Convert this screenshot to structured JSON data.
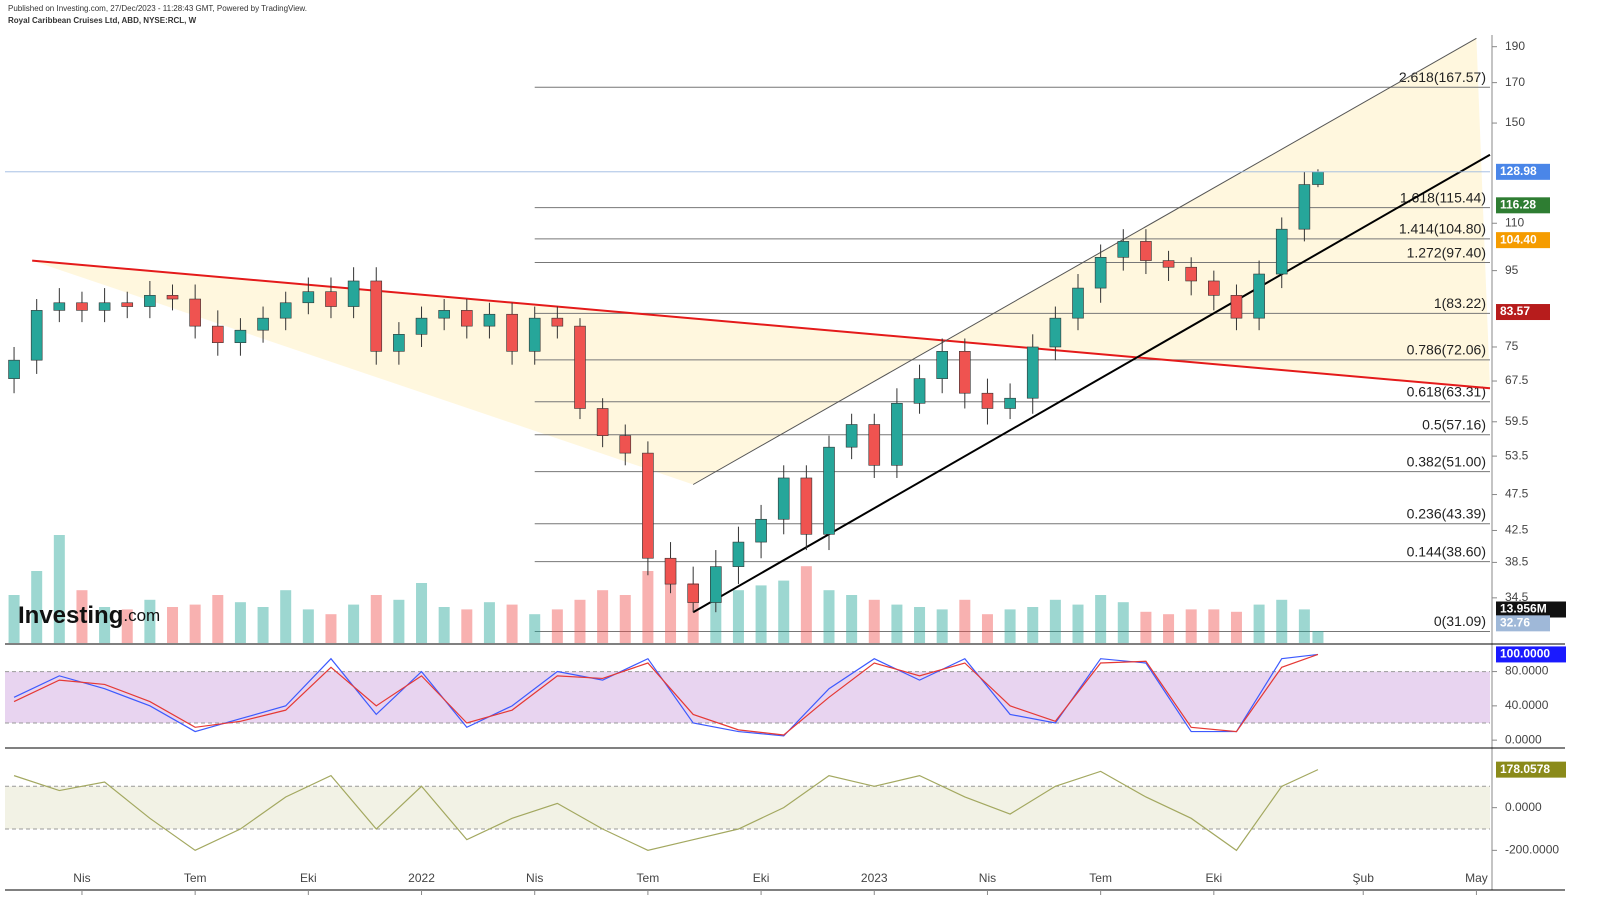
{
  "header": {
    "published": "Published on Investing.com, 27/Dec/2023 - 11:28:43 GMT, Powered by TradingView.",
    "symbol": "Royal Caribbean Cruises Ltd, ABD, NYSE:RCL, W",
    "logo": "Investing",
    "logo_suffix": ".com"
  },
  "chart_data": [
    {
      "type": "candlestick",
      "log_scale": true,
      "ylim": [
        30,
        197
      ],
      "xlim": [
        2021.08,
        2024.36
      ],
      "up_color": "#26a69a",
      "down_color": "#ef5350",
      "xticks": [
        {
          "value": 2021.25,
          "label": "Nis"
        },
        {
          "value": 2021.5,
          "label": "Tem"
        },
        {
          "value": 2021.75,
          "label": "Eki"
        },
        2022,
        {
          "value": 2022.25,
          "label": "Nis"
        },
        {
          "value": 2022.5,
          "label": "Tem"
        },
        {
          "value": 2022.75,
          "label": "Eki"
        },
        2023,
        {
          "value": 2023.25,
          "label": "Nis"
        },
        {
          "value": 2023.5,
          "label": "Tem"
        },
        {
          "value": 2023.75,
          "label": "Eki"
        },
        {
          "value": 2024.08,
          "label": "Şub"
        },
        {
          "value": 2024.33,
          "label": "May"
        }
      ],
      "yticks": [
        190,
        170,
        150,
        110,
        95,
        75,
        67.5,
        59.5,
        53.5,
        47.5,
        42.5,
        38.5,
        34.5
      ],
      "x": [
        2021.1,
        2021.15,
        2021.2,
        2021.25,
        2021.3,
        2021.35,
        2021.4,
        2021.45,
        2021.5,
        2021.55,
        2021.6,
        2021.65,
        2021.7,
        2021.75,
        2021.8,
        2021.85,
        2021.9,
        2021.95,
        2022.0,
        2022.05,
        2022.1,
        2022.15,
        2022.2,
        2022.25,
        2022.3,
        2022.35,
        2022.4,
        2022.45,
        2022.5,
        2022.55,
        2022.6,
        2022.65,
        2022.7,
        2022.75,
        2022.8,
        2022.85,
        2022.9,
        2022.95,
        2023.0,
        2023.05,
        2023.1,
        2023.15,
        2023.2,
        2023.25,
        2023.3,
        2023.35,
        2023.4,
        2023.45,
        2023.5,
        2023.55,
        2023.6,
        2023.65,
        2023.7,
        2023.75,
        2023.8,
        2023.85,
        2023.9,
        2023.95,
        2023.98
      ],
      "open": [
        68,
        72,
        84,
        86,
        84,
        86,
        85,
        88,
        87,
        80,
        76,
        79,
        82,
        86,
        89,
        85,
        92,
        74,
        78,
        82,
        84,
        80,
        83,
        74,
        82,
        80,
        62,
        57,
        54,
        39,
        36,
        34,
        38,
        41,
        44,
        50,
        42,
        55,
        59,
        52,
        63,
        68,
        74,
        65,
        62,
        64,
        75,
        82,
        90,
        99,
        104,
        98,
        96,
        92,
        88,
        82,
        94,
        108,
        124
      ],
      "high": [
        75,
        87,
        90,
        89,
        90,
        89,
        92,
        91,
        91,
        84,
        82,
        85,
        89,
        93,
        93,
        96,
        96,
        81,
        85,
        87,
        87,
        86,
        86,
        85,
        85,
        82,
        64,
        59,
        56,
        41,
        38,
        40,
        43,
        46,
        52,
        52,
        57,
        61,
        61,
        66,
        71,
        77,
        77,
        68,
        67,
        78,
        85,
        94,
        103,
        108,
        108,
        101,
        99,
        95,
        91,
        98,
        112,
        129,
        130
      ],
      "low": [
        65,
        69,
        81,
        81,
        81,
        82,
        82,
        84,
        77,
        73,
        73,
        76,
        79,
        83,
        82,
        82,
        71,
        71,
        75,
        79,
        77,
        77,
        71,
        71,
        77,
        60,
        55,
        52,
        37,
        35,
        33,
        33,
        36,
        39,
        42,
        40,
        40,
        53,
        50,
        50,
        61,
        65,
        62,
        59,
        60,
        61,
        72,
        79,
        86,
        95,
        94,
        92,
        88,
        84,
        79,
        79,
        90,
        104,
        123
      ],
      "close": [
        72,
        84,
        86,
        84,
        86,
        85,
        88,
        87,
        80,
        76,
        79,
        82,
        86,
        89,
        85,
        92,
        74,
        78,
        82,
        84,
        80,
        83,
        74,
        82,
        80,
        62,
        57,
        54,
        39,
        36,
        34,
        38,
        41,
        44,
        50,
        42,
        55,
        59,
        52,
        63,
        68,
        74,
        65,
        62,
        64,
        75,
        82,
        90,
        99,
        104,
        98,
        96,
        92,
        88,
        82,
        94,
        108,
        124,
        128.98
      ],
      "volume": [
        20,
        30,
        45,
        22,
        15,
        14,
        18,
        15,
        16,
        20,
        17,
        15,
        22,
        14,
        12,
        16,
        20,
        18,
        25,
        15,
        14,
        17,
        16,
        12,
        14,
        18,
        22,
        20,
        30,
        28,
        25,
        27,
        22,
        24,
        26,
        32,
        22,
        20,
        18,
        16,
        15,
        14,
        18,
        12,
        14,
        15,
        18,
        16,
        20,
        17,
        13,
        12,
        14,
        14,
        13,
        16,
        18,
        14,
        5
      ],
      "fib_levels": [
        {
          "value": 167.57,
          "label": "2.618(167.57)"
        },
        {
          "value": 115.44,
          "label": "1.618(115.44)"
        },
        {
          "value": 104.8,
          "label": "1.414(104.80)"
        },
        {
          "value": 97.4,
          "label": "1.272(97.40)"
        },
        {
          "value": 83.22,
          "label": "1(83.22)"
        },
        {
          "value": 72.06,
          "label": "0.786(72.06)"
        },
        {
          "value": 63.31,
          "label": "0.618(63.31)"
        },
        {
          "value": 57.16,
          "label": "0.5(57.16)"
        },
        {
          "value": 51,
          "label": "0.382(51.00)"
        },
        {
          "value": 43.39,
          "label": "0.236(43.39)"
        },
        {
          "value": 38.6,
          "label": "0.144(38.60)"
        },
        {
          "value": 31.09,
          "label": "0(31.09)"
        }
      ],
      "trendlines": [
        {
          "color": "#e41a1a",
          "points": [
            [
              2021.14,
              98
            ],
            [
              2024.36,
              66
            ]
          ]
        },
        {
          "color": "#000000",
          "points": [
            [
              2022.6,
              33
            ],
            [
              2024.36,
              136
            ]
          ]
        },
        {
          "color": "#555555",
          "points": [
            [
              2022.6,
              49
            ],
            [
              2024.33,
              195
            ]
          ]
        }
      ],
      "price_badges": [
        {
          "value": 128.98,
          "label": "128.98",
          "color": "#4a86e8"
        },
        {
          "value": 116.28,
          "label": "116.28",
          "color": "#2e7d32"
        },
        {
          "value": 104.4,
          "label": "104.40",
          "color": "#f59c00"
        },
        {
          "value": 83.57,
          "label": "83.57",
          "color": "#b71c1c"
        }
      ],
      "volume_badges": [
        {
          "value": 13.956,
          "label": "13.956M",
          "color": "#111111"
        },
        {
          "value": 32.76,
          "label": "32.76",
          "color": "#9fb8d8"
        }
      ]
    },
    {
      "type": "line",
      "ylim": [
        -8,
        111
      ],
      "band": [
        20,
        80
      ],
      "yticks": [
        {
          "value": 80,
          "label": "80.0000"
        },
        {
          "value": 40,
          "label": "40.0000"
        },
        {
          "value": 0,
          "label": "0.0000"
        }
      ],
      "x": [
        2021.1,
        2021.2,
        2021.3,
        2021.4,
        2021.5,
        2021.6,
        2021.7,
        2021.8,
        2021.9,
        2022.0,
        2022.1,
        2022.2,
        2022.3,
        2022.4,
        2022.5,
        2022.6,
        2022.7,
        2022.8,
        2022.9,
        2023.0,
        2023.1,
        2023.2,
        2023.3,
        2023.4,
        2023.5,
        2023.6,
        2023.7,
        2023.8,
        2023.9,
        2023.98
      ],
      "series": [
        {
          "color": "#3d5afe",
          "values": [
            50,
            75,
            60,
            40,
            10,
            25,
            40,
            95,
            30,
            80,
            15,
            40,
            80,
            70,
            95,
            20,
            10,
            5,
            60,
            95,
            70,
            95,
            30,
            20,
            95,
            90,
            10,
            10,
            95,
            100
          ]
        },
        {
          "color": "#e53935",
          "values": [
            45,
            70,
            65,
            45,
            15,
            22,
            35,
            85,
            40,
            75,
            20,
            35,
            75,
            72,
            90,
            30,
            12,
            6,
            50,
            90,
            75,
            90,
            40,
            22,
            90,
            92,
            15,
            10,
            85,
            100
          ]
        }
      ],
      "badge": {
        "value": 100,
        "label": "100.0000",
        "color": "#1a1aff"
      }
    },
    {
      "type": "line",
      "ylim": [
        -381,
        270
      ],
      "band": [
        -100,
        100
      ],
      "yticks": [
        {
          "value": 0,
          "label": "0.0000"
        },
        {
          "value": -200,
          "label": "-200.0000"
        }
      ],
      "x": [
        2021.1,
        2021.2,
        2021.3,
        2021.4,
        2021.5,
        2021.6,
        2021.7,
        2021.8,
        2021.9,
        2022.0,
        2022.1,
        2022.2,
        2022.3,
        2022.4,
        2022.5,
        2022.6,
        2022.7,
        2022.8,
        2022.9,
        2023.0,
        2023.1,
        2023.2,
        2023.3,
        2023.4,
        2023.5,
        2023.6,
        2023.7,
        2023.8,
        2023.9,
        2023.98
      ],
      "series": [
        {
          "color": "#a3a860",
          "values": [
            150,
            80,
            120,
            -50,
            -200,
            -100,
            50,
            150,
            -100,
            100,
            -150,
            -50,
            20,
            -100,
            -200,
            -150,
            -100,
            0,
            150,
            100,
            150,
            50,
            -30,
            100,
            170,
            50,
            -50,
            -200,
            100,
            178.06
          ]
        }
      ],
      "badge": {
        "value": 178.0578,
        "label": "178.0578",
        "color": "#8a8a1a"
      }
    }
  ]
}
